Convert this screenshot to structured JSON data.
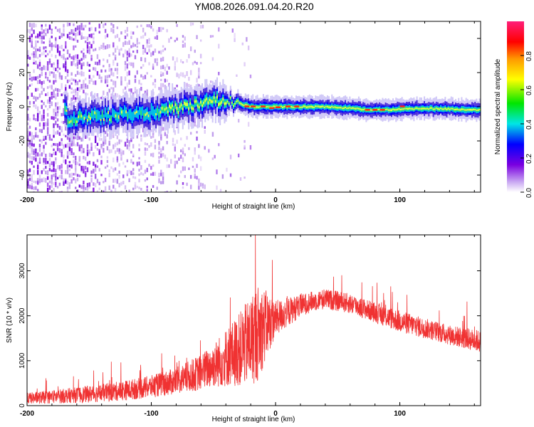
{
  "title": "YM08.2026.091.04.20.R20",
  "chart_data": [
    {
      "type": "heatmap",
      "xlabel": "Height of straight line (km)",
      "ylabel": "Frequency (Hz)",
      "xlim": [
        -200,
        165
      ],
      "ylim": [
        -50,
        50
      ],
      "xticks": [
        -200,
        -100,
        0,
        100
      ],
      "yticks": [
        -40,
        -20,
        0,
        20,
        40
      ],
      "colorbar": {
        "label": "Normalized spectral amplitude",
        "range": [
          0,
          1
        ],
        "ticks": [
          "0.0",
          "0.2",
          "0.4",
          "0.6",
          "0.8"
        ],
        "colormap": "rainbow (white-violet-blue-cyan-green-yellow-orange-red-magenta)"
      },
      "ridge": {
        "center_hz": [
          {
            "x": -168,
            "y": -8
          },
          {
            "x": -150,
            "y": -6
          },
          {
            "x": -130,
            "y": -5
          },
          {
            "x": -110,
            "y": -4
          },
          {
            "x": -90,
            "y": -2
          },
          {
            "x": -70,
            "y": 0
          },
          {
            "x": -50,
            "y": 4
          },
          {
            "x": -35,
            "y": 3
          },
          {
            "x": -20,
            "y": 0
          },
          {
            "x": 0,
            "y": 0
          },
          {
            "x": 40,
            "y": 0
          },
          {
            "x": 80,
            "y": -2
          },
          {
            "x": 120,
            "y": -1
          },
          {
            "x": 165,
            "y": -2
          }
        ]
      }
    },
    {
      "type": "line",
      "xlabel": "Height of straight line (km)",
      "ylabel": "SNR (10 * v/v)",
      "xlim": [
        -200,
        165
      ],
      "ylim": [
        0,
        3800
      ],
      "xticks": [
        -200,
        -100,
        0,
        100
      ],
      "yticks": [
        0,
        1000,
        2000,
        3000
      ],
      "color": "#f03232",
      "envelope": {
        "x": [
          -200,
          -180,
          -160,
          -140,
          -120,
          -100,
          -80,
          -60,
          -50,
          -40,
          -30,
          -20,
          -15,
          -10,
          0,
          20,
          30,
          40,
          60,
          80,
          100,
          120,
          140,
          165
        ],
        "base": [
          150,
          180,
          220,
          260,
          320,
          400,
          520,
          700,
          850,
          1000,
          1150,
          1350,
          1500,
          1650,
          1900,
          2200,
          2300,
          2350,
          2250,
          2050,
          1850,
          1700,
          1550,
          1400
        ],
        "spread": [
          250,
          300,
          350,
          400,
          450,
          500,
          600,
          800,
          1000,
          1300,
          1600,
          2000,
          2200,
          1800,
          800,
          500,
          450,
          450,
          450,
          450,
          500,
          450,
          450,
          500
        ]
      }
    }
  ]
}
